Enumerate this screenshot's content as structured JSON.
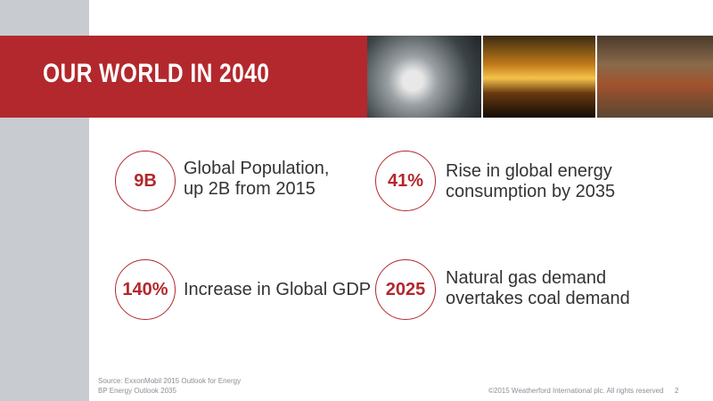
{
  "header": {
    "title": "OUR WORLD IN 2040"
  },
  "stats": [
    {
      "figure": "9B",
      "lines": [
        "Global Population,",
        "up 2B from 2015"
      ]
    },
    {
      "figure": "41%",
      "lines": [
        "Rise in global energy",
        "consumption by 2035"
      ]
    },
    {
      "figure": "140%",
      "lines": [
        "Increase in Global GDP"
      ]
    },
    {
      "figure": "2025",
      "lines": [
        "Natural gas demand",
        "overtakes coal demand"
      ]
    }
  ],
  "footer": {
    "sources": [
      "Source: ExxonMobil 2015 Outlook for Energy",
      "BP Energy Outlook 2035"
    ],
    "copyright": "©2015 Weatherford International plc.  All rights reserved",
    "page": "2"
  }
}
